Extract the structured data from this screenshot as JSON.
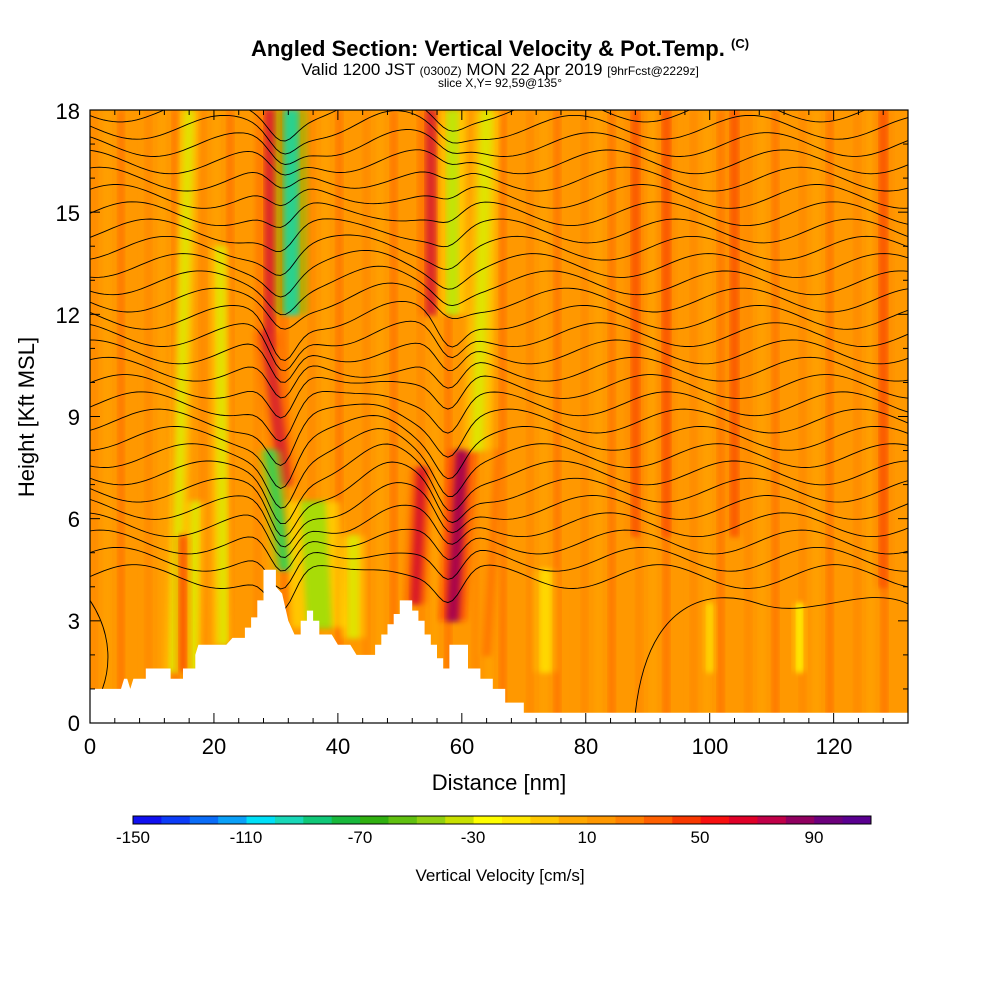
{
  "header": {
    "title": "Angled Section: Vertical Velocity & Pot.Temp.",
    "title_mark": "(C)",
    "valid_prefix": "Valid 1200 JST",
    "valid_zulu": "(0300Z)",
    "valid_date": "MON 22 Apr 2019",
    "forecast": "[9hrFcst@2229z]",
    "slice": "slice X,Y= 92,59@135°"
  },
  "chart_data": {
    "type": "heatmap",
    "xlabel": "Distance [nm]",
    "ylabel": "Height [Kft MSL]",
    "xlim": [
      0,
      132
    ],
    "ylim": [
      0,
      18
    ],
    "x_ticks": [
      "0",
      "20",
      "40",
      "60",
      "80",
      "100",
      "120"
    ],
    "y_ticks": [
      "0",
      "3",
      "6",
      "9",
      "12",
      "15",
      "18"
    ],
    "background_value": 15,
    "terrain": [
      [
        0,
        1.0
      ],
      [
        5,
        1.0
      ],
      [
        5.5,
        1.3
      ],
      [
        6,
        1.3
      ],
      [
        6.5,
        1.0
      ],
      [
        7,
        1.3
      ],
      [
        9,
        1.3
      ],
      [
        9,
        1.6
      ],
      [
        13,
        1.6
      ],
      [
        13,
        1.3
      ],
      [
        15,
        1.3
      ],
      [
        15,
        1.6
      ],
      [
        17,
        1.6
      ],
      [
        17,
        2.0
      ],
      [
        17.5,
        2.3
      ],
      [
        22,
        2.3
      ],
      [
        23,
        2.5
      ],
      [
        25,
        2.5
      ],
      [
        25,
        2.8
      ],
      [
        26,
        2.8
      ],
      [
        26,
        3.1
      ],
      [
        27,
        3.1
      ],
      [
        27,
        3.6
      ],
      [
        28,
        3.6
      ],
      [
        28,
        4.5
      ],
      [
        30,
        4.5
      ],
      [
        30,
        4.0
      ],
      [
        31,
        3.8
      ],
      [
        32,
        3.0
      ],
      [
        33,
        2.6
      ],
      [
        34,
        2.6
      ],
      [
        34,
        3.0
      ],
      [
        35,
        3.0
      ],
      [
        35,
        3.3
      ],
      [
        36,
        3.3
      ],
      [
        36,
        3.0
      ],
      [
        37,
        3.0
      ],
      [
        37,
        2.6
      ],
      [
        39,
        2.6
      ],
      [
        40,
        2.3
      ],
      [
        42,
        2.3
      ],
      [
        43,
        2.0
      ],
      [
        46,
        2.0
      ],
      [
        46,
        2.3
      ],
      [
        47,
        2.3
      ],
      [
        47,
        2.6
      ],
      [
        48,
        2.6
      ],
      [
        48,
        2.9
      ],
      [
        49,
        2.9
      ],
      [
        49,
        3.2
      ],
      [
        50,
        3.2
      ],
      [
        50,
        3.6
      ],
      [
        52,
        3.6
      ],
      [
        52,
        3.3
      ],
      [
        53,
        3.3
      ],
      [
        53,
        3.0
      ],
      [
        54,
        3.0
      ],
      [
        54,
        2.6
      ],
      [
        55,
        2.6
      ],
      [
        55,
        2.3
      ],
      [
        56,
        2.3
      ],
      [
        56,
        1.9
      ],
      [
        57,
        1.9
      ],
      [
        57,
        1.6
      ],
      [
        58,
        1.6
      ],
      [
        58,
        2.3
      ],
      [
        61,
        2.3
      ],
      [
        61,
        1.6
      ],
      [
        63,
        1.6
      ],
      [
        63,
        1.3
      ],
      [
        65,
        1.3
      ],
      [
        65,
        1.0
      ],
      [
        67,
        1.0
      ],
      [
        67,
        0.6
      ],
      [
        70,
        0.6
      ],
      [
        70,
        0.3
      ],
      [
        132,
        0.3
      ]
    ],
    "bands": [
      {
        "x_center": 13.6,
        "x_top": 16,
        "half_width": 0.7,
        "y0": 1.5,
        "y1": 18,
        "value": -40
      },
      {
        "x_center": 16.5,
        "x_top": 17,
        "half_width": 0.7,
        "y0": 1.5,
        "y1": 6.5,
        "value": -40
      },
      {
        "x_center": 21.5,
        "x_top": 21,
        "half_width": 0.7,
        "y0": 2.3,
        "y1": 14,
        "value": -40
      },
      {
        "x_center": 15,
        "x_top": 15,
        "half_width": 0.6,
        "y0": 1.5,
        "y1": 5.5,
        "value": 40
      },
      {
        "x_center": 29,
        "x_top": 29,
        "half_width": 0.9,
        "y0": 11,
        "y1": 18,
        "value": 70
      },
      {
        "x_center": 31.5,
        "x_top": 28.5,
        "half_width": 1.0,
        "y0": 7,
        "y1": 11.5,
        "value": 70
      },
      {
        "x_center": 32.5,
        "x_top": 32.5,
        "half_width": 1.2,
        "y0": 12,
        "y1": 18,
        "value": -110
      },
      {
        "x_center": 31.5,
        "x_top": 29,
        "half_width": 0.9,
        "y0": 4.5,
        "y1": 8,
        "value": -90
      },
      {
        "x_center": 37,
        "x_top": 36,
        "half_width": 2.0,
        "y0": 2.8,
        "y1": 6.5,
        "value": -60
      },
      {
        "x_center": 42.5,
        "x_top": 42.5,
        "half_width": 0.9,
        "y0": 2.5,
        "y1": 5.5,
        "value": -40
      },
      {
        "x_center": 52.5,
        "x_top": 53.5,
        "half_width": 0.8,
        "y0": 3.5,
        "y1": 7.5,
        "value": 75
      },
      {
        "x_center": 55,
        "x_top": 55,
        "half_width": 0.9,
        "y0": 12,
        "y1": 18,
        "value": 70
      },
      {
        "x_center": 58.5,
        "x_top": 60,
        "half_width": 1.0,
        "y0": 3,
        "y1": 8,
        "value": 95
      },
      {
        "x_center": 58.5,
        "x_top": 58.5,
        "half_width": 1.0,
        "y0": 12,
        "y1": 18,
        "value": -45
      },
      {
        "x_center": 62.5,
        "x_top": 64,
        "half_width": 1.0,
        "y0": 8,
        "y1": 18,
        "value": -40
      },
      {
        "x_center": 64,
        "x_top": 66,
        "half_width": 0.7,
        "y0": 2,
        "y1": 8,
        "value": 35
      },
      {
        "x_center": 73.5,
        "x_top": 73.5,
        "half_width": 0.9,
        "y0": 1.5,
        "y1": 4.5,
        "value": -20
      },
      {
        "x_center": 114.5,
        "x_top": 114.5,
        "half_width": 0.5,
        "y0": 1.5,
        "y1": 3.5,
        "value": -30
      },
      {
        "x_center": 100,
        "x_top": 100,
        "half_width": 0.5,
        "y0": 1.5,
        "y1": 3.5,
        "value": -20
      },
      {
        "x_center": 88,
        "x_top": 88,
        "half_width": 0.7,
        "y0": 5.5,
        "y1": 18,
        "value": 40
      },
      {
        "x_center": 93,
        "x_top": 93,
        "half_width": 0.7,
        "y0": 5.5,
        "y1": 18,
        "value": 40
      },
      {
        "x_center": 104,
        "x_top": 104,
        "half_width": 0.7,
        "y0": 5.5,
        "y1": 18,
        "value": 40
      },
      {
        "x_center": 128,
        "x_top": 128,
        "half_width": 0.7,
        "y0": 4,
        "y1": 18,
        "value": 40
      }
    ],
    "isentrope_count": 28,
    "colorbar": {
      "label": "Vertical Velocity [cm/s]",
      "min": -150,
      "max": 110,
      "step": 10,
      "tick_labels": [
        "-150",
        "-110",
        "-70",
        "-30",
        "10",
        "50",
        "90"
      ],
      "colors": [
        "#1010f0",
        "#0c3cf8",
        "#0a6cf8",
        "#0aa0f8",
        "#00e0f8",
        "#18d8b8",
        "#10c878",
        "#18b83c",
        "#30b010",
        "#60c010",
        "#90d010",
        "#c8e000",
        "#ffff00",
        "#ffe800",
        "#ffc800",
        "#ffa800",
        "#ff9800",
        "#ff8000",
        "#ff6000",
        "#f83800",
        "#f81010",
        "#e00028",
        "#c00048",
        "#900060",
        "#6c007c",
        "#5a0090"
      ]
    }
  }
}
